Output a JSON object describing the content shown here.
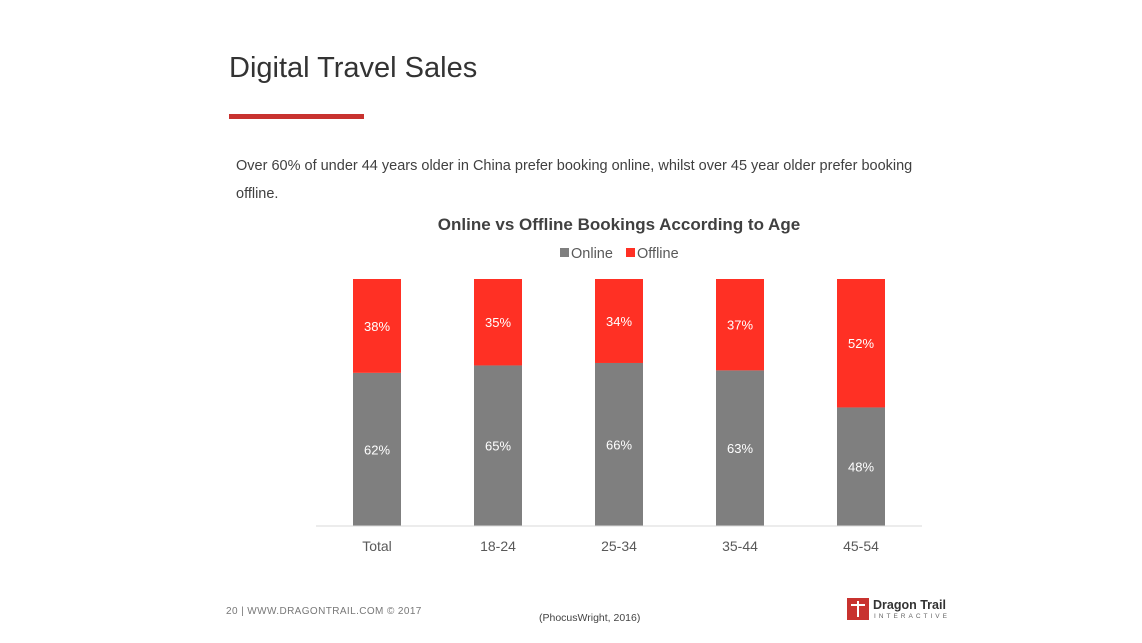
{
  "slide": {
    "title": "Digital Travel Sales",
    "subtitle": "Over 60% of under 44 years older in China prefer booking online, whilst over 45 year older prefer booking offline.",
    "footer_page": "20",
    "footer_site": "|  WWW.DRAGONTRAIL.COM ©  2017",
    "source": "(PhocusWright, 2016)",
    "logo_name": "Dragon Trail",
    "logo_tagline": "INTERACTIVE",
    "accent_color": "#c8322f"
  },
  "chart_data": {
    "type": "bar",
    "stacked": true,
    "title": "Online vs Offline Bookings According to Age",
    "xlabel": "",
    "ylabel": "",
    "ylim": [
      0,
      100
    ],
    "grid": false,
    "legend_position": "top",
    "categories": [
      "Total",
      "18-24",
      "25-34",
      "35-44",
      "45-54"
    ],
    "series": [
      {
        "name": "Online",
        "color": "#7f7f7f",
        "values": [
          62,
          65,
          66,
          63,
          48
        ],
        "labels": [
          "62%",
          "65%",
          "66%",
          "63%",
          "48%"
        ]
      },
      {
        "name": "Offline",
        "color": "#ff3024",
        "values": [
          38,
          35,
          34,
          37,
          52
        ],
        "labels": [
          "38%",
          "35%",
          "34%",
          "37%",
          "52%"
        ]
      }
    ]
  }
}
